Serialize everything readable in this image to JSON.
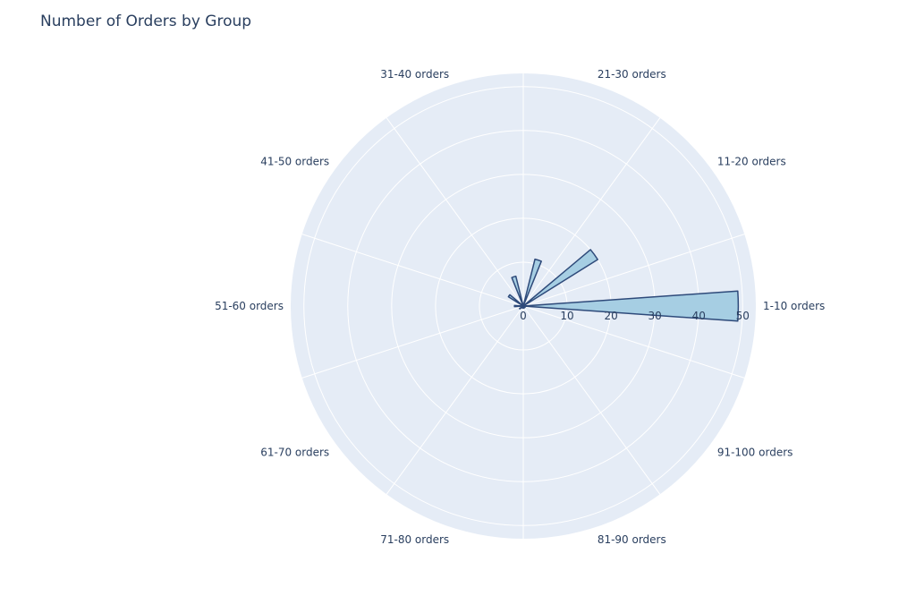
{
  "chart_data": {
    "type": "barpolar",
    "title": "Number of Orders by Group",
    "categories": [
      "1-10 orders",
      "11-20 orders",
      "21-30 orders",
      "31-40 orders",
      "41-50 orders",
      "51-60 orders",
      "61-70 orders",
      "71-80 orders",
      "81-90 orders",
      "91-100 orders"
    ],
    "values": [
      49,
      20,
      11,
      7,
      4,
      2,
      1,
      0.5,
      0.5,
      0.5
    ],
    "radial_range": [
      0,
      53
    ],
    "radial_ticks": [
      "0",
      "10",
      "20",
      "30",
      "40",
      "50"
    ],
    "grid": true,
    "colors": {
      "bar_fill": "#a6cee3",
      "bar_stroke": "#2e4a7a",
      "polar_bg": "#e5ecf6",
      "grid": "#ffffff",
      "text": "#2a3f5f"
    }
  }
}
